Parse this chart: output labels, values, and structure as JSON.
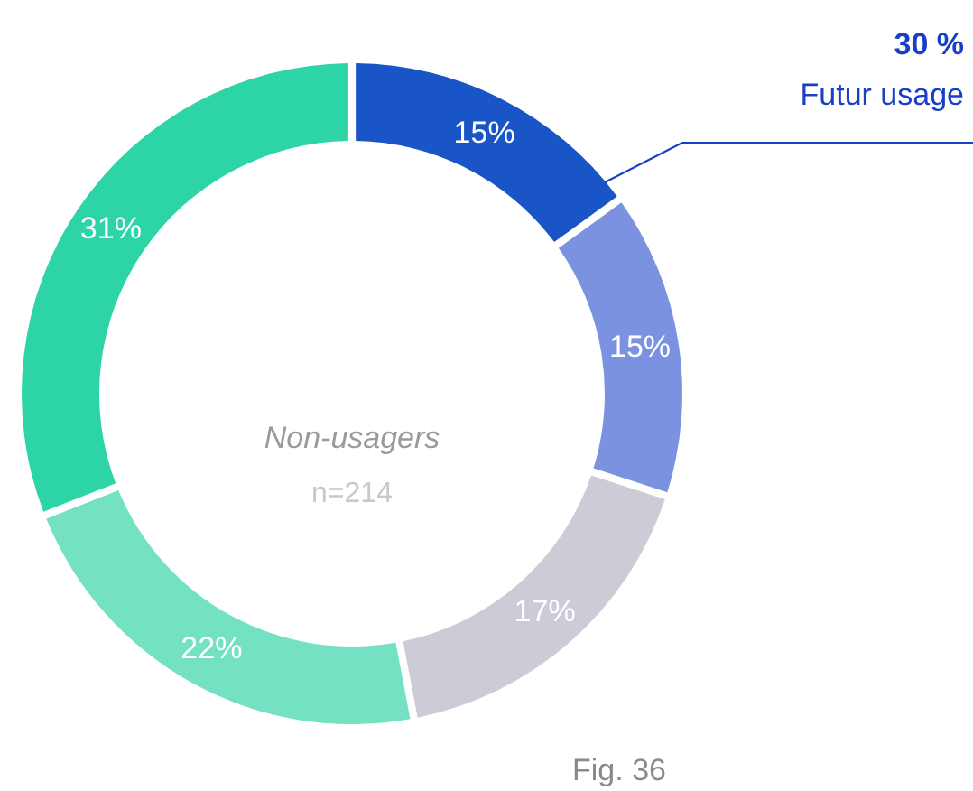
{
  "chart_data": {
    "type": "donut",
    "categories": [
      null,
      null,
      null,
      null,
      null
    ],
    "values": [
      15,
      15,
      17,
      22,
      31
    ],
    "value_labels": [
      "15%",
      "15%",
      "17%",
      "22%",
      "31%"
    ],
    "colors": [
      "#1a55c7",
      "#7b92e0",
      "#cbccd6",
      "#74e2c2",
      "#2cd4a6"
    ],
    "annotations": [
      "Non-usagers",
      "n=214",
      "30 %",
      "Futur usage",
      "Fig. 36"
    ]
  }
}
